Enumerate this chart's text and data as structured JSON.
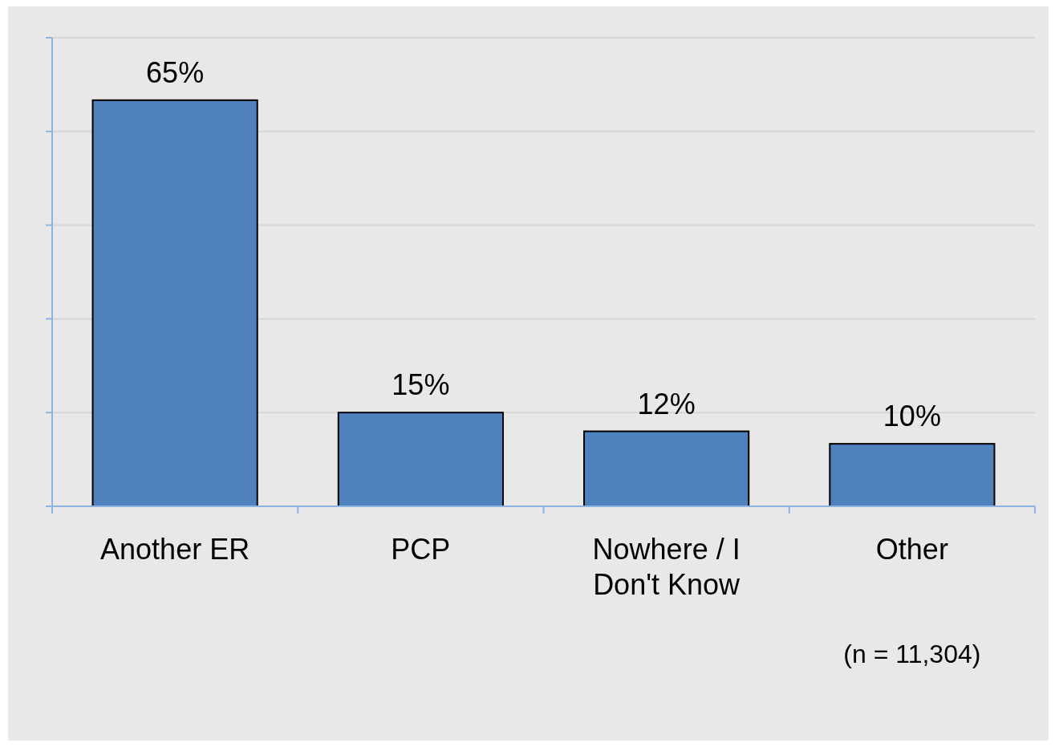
{
  "chart_data": {
    "type": "bar",
    "categories": [
      "Another ER",
      "PCP",
      "Nowhere / I Don't Know",
      "Other"
    ],
    "values": [
      65,
      15,
      12,
      10
    ],
    "color": "#4f81bd",
    "ylim": [
      0,
      75
    ],
    "yticks": [
      {
        "value": 0,
        "label": null
      },
      {
        "value": 15,
        "label": null
      },
      {
        "value": 30,
        "label": null
      },
      {
        "value": 45,
        "label": null
      },
      {
        "value": 60,
        "label": null
      },
      {
        "value": 75,
        "label": null
      }
    ],
    "tick_labels": "x",
    "grid": "y",
    "value_labels": [
      "65%",
      "15%",
      "12%",
      "10%"
    ],
    "annotations": [
      "(n = 11,304)"
    ]
  }
}
